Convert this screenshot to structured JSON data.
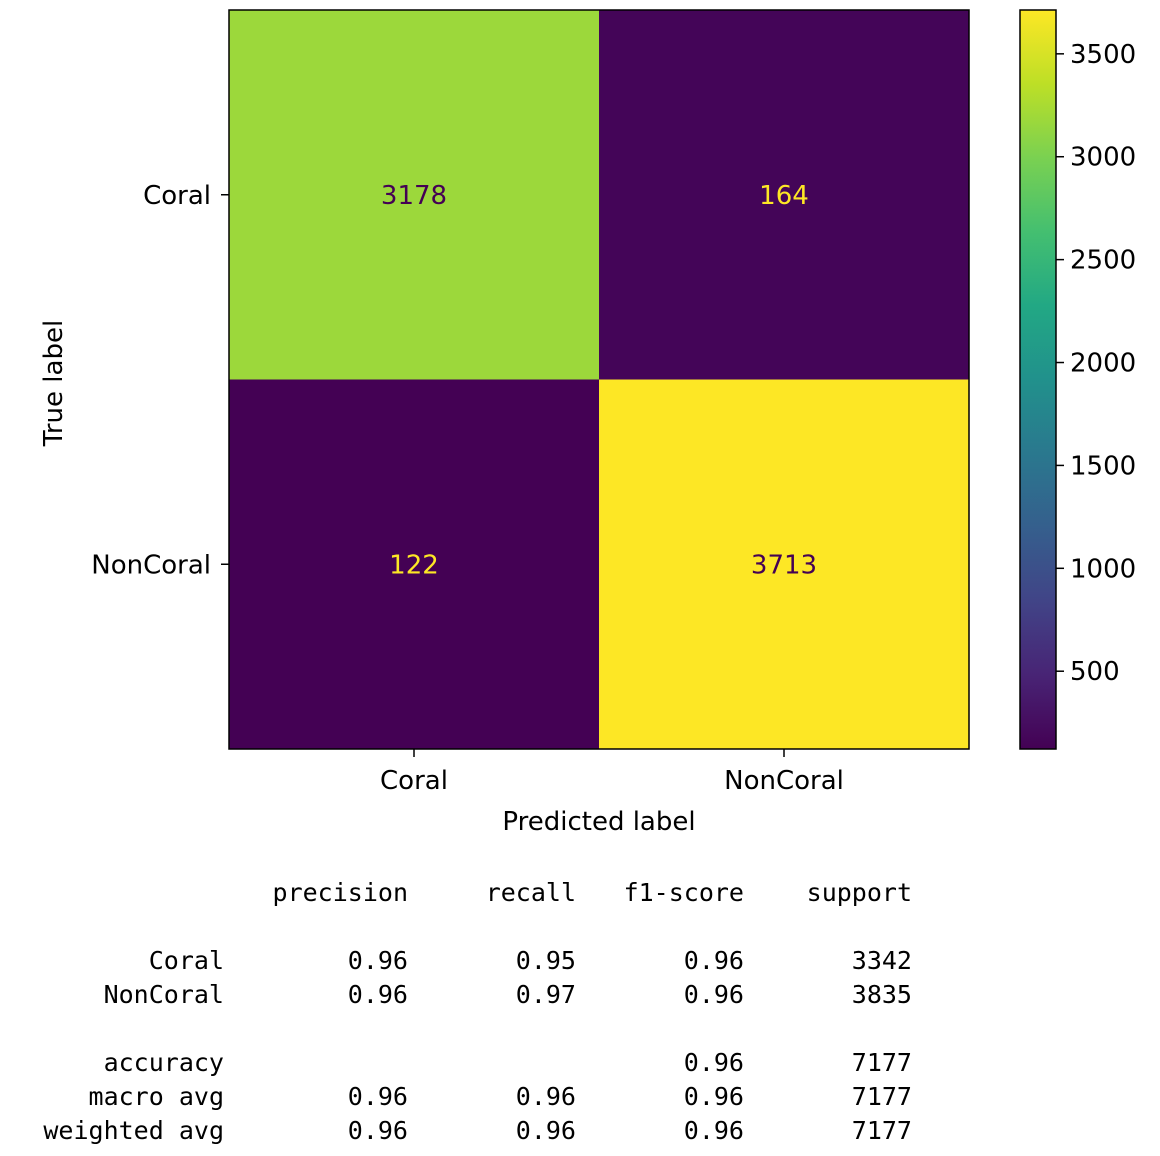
{
  "chart_data": {
    "type": "heatmap",
    "title": "",
    "xlabel": "Predicted label",
    "ylabel": "True label",
    "x_categories": [
      "Coral",
      "NonCoral"
    ],
    "y_categories": [
      "Coral",
      "NonCoral"
    ],
    "matrix": [
      [
        3178,
        164
      ],
      [
        122,
        3713
      ]
    ],
    "colormap": "viridis",
    "colorbar": {
      "min": 122,
      "max": 3713,
      "ticks": [
        500,
        1000,
        1500,
        2000,
        2500,
        3000,
        3500
      ]
    },
    "grid": false
  },
  "report": {
    "header": [
      "",
      "precision",
      "recall",
      "f1-score",
      "support"
    ],
    "rows": [
      [
        "Coral",
        "0.96",
        "0.95",
        "0.96",
        "3342"
      ],
      [
        "NonCoral",
        "0.96",
        "0.97",
        "0.96",
        "3835"
      ],
      [
        "",
        "",
        "",
        "",
        ""
      ],
      [
        "accuracy",
        "",
        "",
        "0.96",
        "7177"
      ],
      [
        "macro avg",
        "0.96",
        "0.96",
        "0.96",
        "7177"
      ],
      [
        "weighted avg",
        "0.96",
        "0.96",
        "0.96",
        "7177"
      ]
    ]
  }
}
